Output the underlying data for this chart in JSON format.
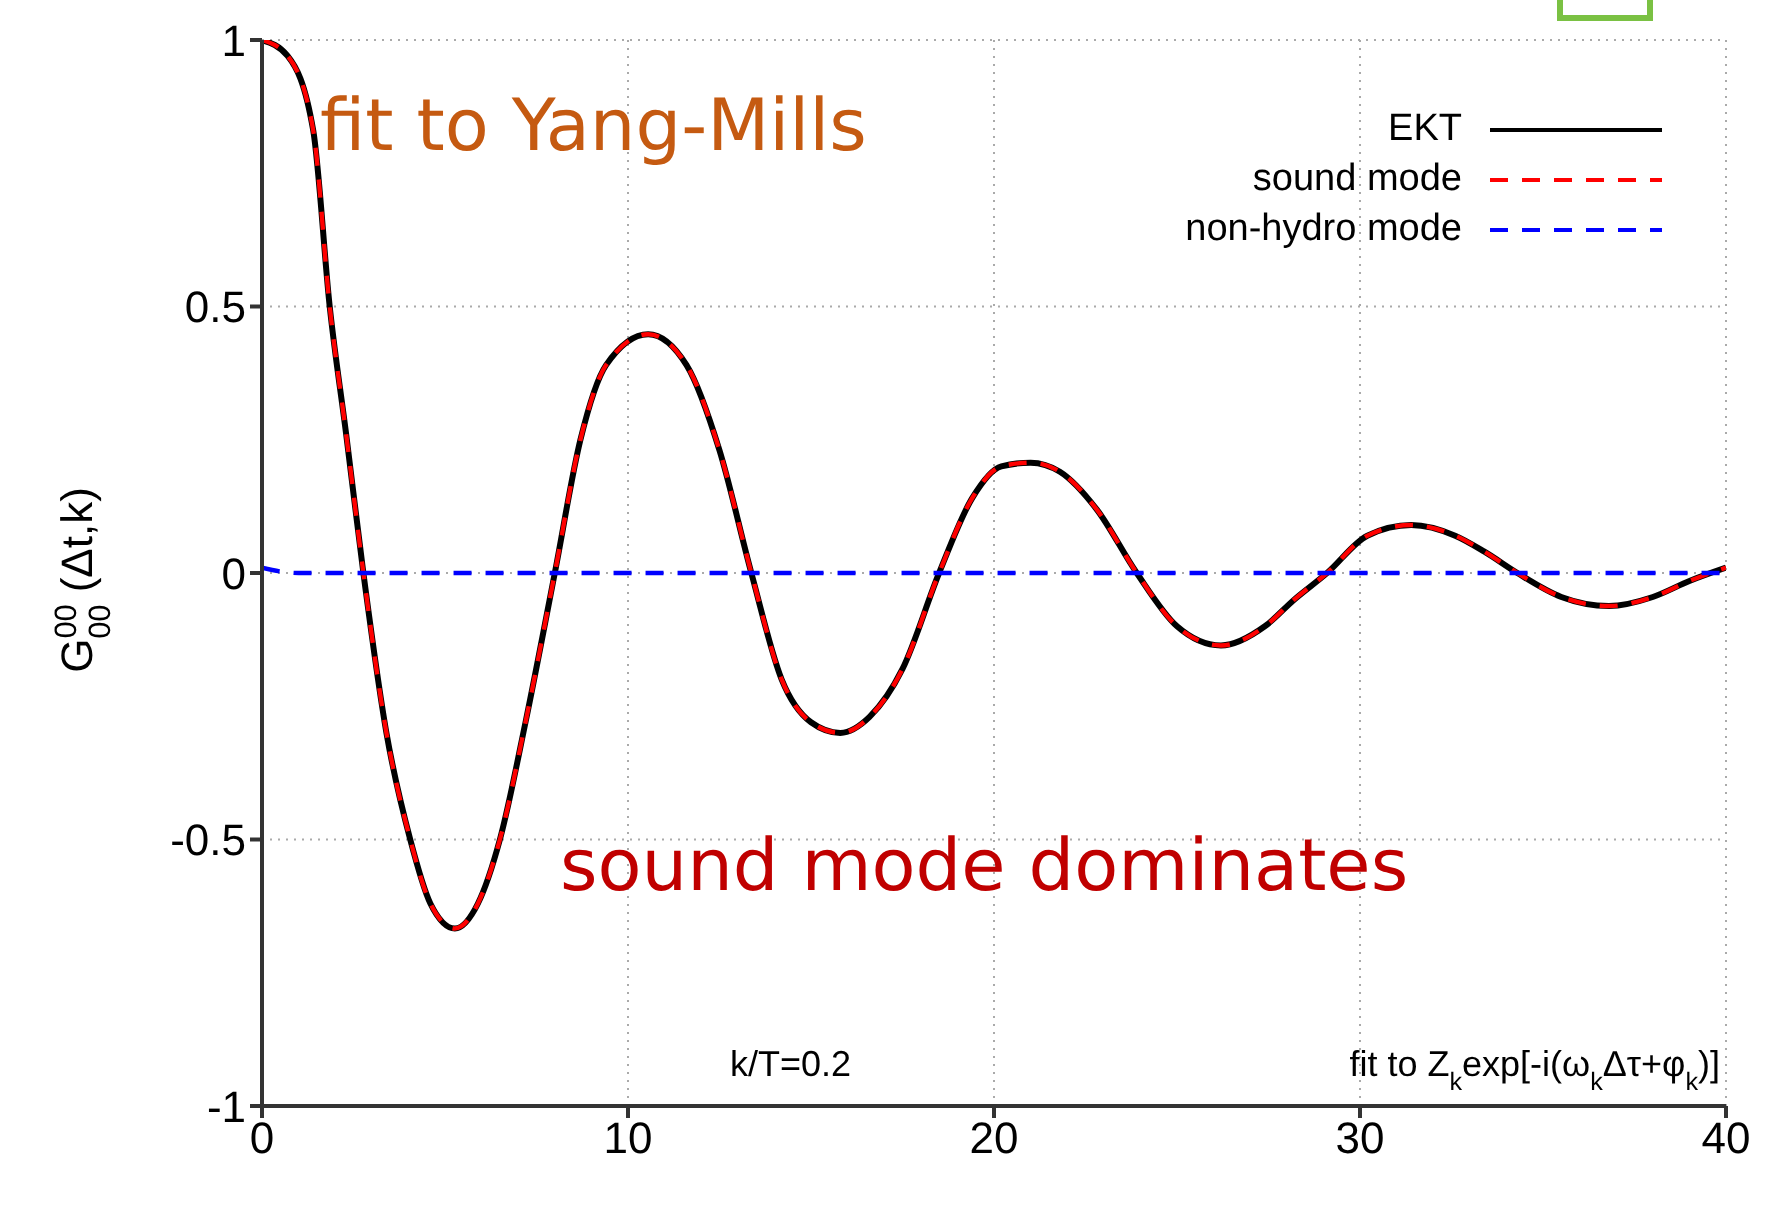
{
  "chart_data": {
    "type": "line",
    "ylabel": "G$^{00}$$_{00}$ (Δt,k)",
    "x": [
      0,
      0.7,
      1.4,
      1.85,
      2.3,
      2.77,
      3.4,
      4.05,
      4.6,
      5.27,
      5.9,
      6.5,
      7.2,
      8.0,
      8.7,
      9.4,
      10.55,
      11.6,
      12.5,
      13.37,
      14.2,
      15.0,
      15.8,
      16.6,
      17.5,
      18.5,
      19.4,
      20.2,
      21.0,
      21.8,
      22.8,
      23.9,
      25.0,
      26.2,
      27.4,
      28.2,
      29.1,
      30.2,
      31.4,
      32.6,
      33.4,
      34.3,
      35.5,
      36.8,
      38.0,
      39.0,
      40
    ],
    "series": [
      {
        "name": "EKT",
        "color": "#000000",
        "line_style": "solid",
        "values": [
          1,
          0.97,
          0.83,
          0.5,
          0.26,
          0,
          -0.3,
          -0.5,
          -0.62,
          -0.667,
          -0.62,
          -0.5,
          -0.28,
          0,
          0.25,
          0.39,
          0.448,
          0.39,
          0.23,
          0,
          -0.2,
          -0.28,
          -0.3,
          -0.27,
          -0.18,
          0,
          0.14,
          0.2,
          0.207,
          0.19,
          0.12,
          0,
          -0.1,
          -0.136,
          -0.1,
          -0.05,
          0,
          0.07,
          0.09,
          0.07,
          0.04,
          0,
          -0.045,
          -0.062,
          -0.045,
          -0.015,
          0.01
        ]
      },
      {
        "name": "sound mode",
        "color": "#ff0000",
        "line_style": "dashed",
        "values": [
          1,
          0.97,
          0.83,
          0.5,
          0.26,
          0,
          -0.3,
          -0.5,
          -0.62,
          -0.667,
          -0.62,
          -0.5,
          -0.28,
          0,
          0.25,
          0.39,
          0.448,
          0.39,
          0.23,
          0,
          -0.2,
          -0.28,
          -0.3,
          -0.27,
          -0.18,
          0,
          0.14,
          0.2,
          0.207,
          0.19,
          0.12,
          0,
          -0.1,
          -0.136,
          -0.1,
          -0.05,
          0,
          0.07,
          0.09,
          0.07,
          0.04,
          0,
          -0.045,
          -0.062,
          -0.045,
          -0.015,
          0.01
        ]
      },
      {
        "name": "non-hydro mode",
        "color": "#0000ff",
        "line_style": "dashed",
        "x": [
          0,
          0.5,
          1,
          40
        ],
        "values": [
          0.01,
          0.003,
          0,
          0
        ]
      }
    ],
    "xlim": [
      0,
      40
    ],
    "xticks": [
      0,
      10,
      20,
      30,
      40
    ],
    "ylim": [
      -1,
      1
    ],
    "yticks": [
      -1,
      -0.5,
      0,
      0.5,
      1
    ],
    "grid": true,
    "legend": "top right",
    "marker": "none",
    "annotations": [
      "fit to Yang-Mills",
      "sound mode dominates",
      "k/T=0.2",
      "fit to Z$_{k}$exp[-i(ω$_{k}$Δτ+φ$_{k}$)]"
    ]
  }
}
